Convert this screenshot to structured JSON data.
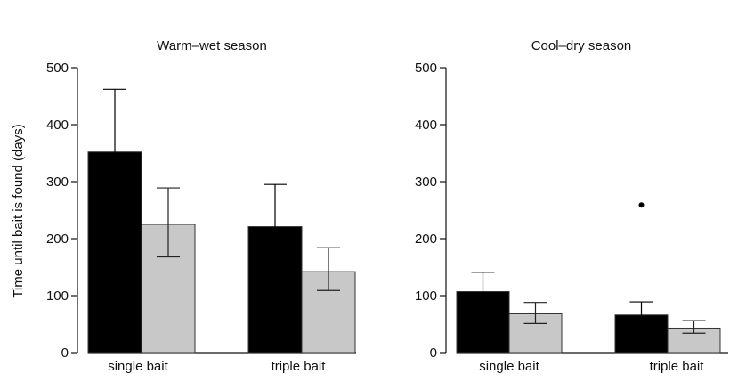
{
  "colors": {
    "series_a": "#000000",
    "series_b": "#c8c8c8",
    "axis": "#111111",
    "errorbar": "#222222"
  },
  "chart_data": [
    {
      "type": "bar",
      "title": "Warm–wet season",
      "ylabel": "Time until bait is found (days)",
      "xlabel": "",
      "ylim": [
        0,
        500
      ],
      "yticks": [
        0,
        100,
        200,
        300,
        400,
        500
      ],
      "categories": [
        "single bait",
        "triple bait"
      ],
      "grid": false,
      "legend": "none",
      "series": [
        {
          "color": "#000000",
          "values": [
            352,
            221
          ],
          "err_low": [
            268,
            172
          ],
          "err_high": [
            462,
            295
          ]
        },
        {
          "color": "#c8c8c8",
          "values": [
            225,
            142
          ],
          "err_low": [
            168,
            109
          ],
          "err_high": [
            289,
            184
          ]
        }
      ],
      "outliers": []
    },
    {
      "type": "bar",
      "title": "Cool–dry season",
      "ylabel": "",
      "xlabel": "",
      "ylim": [
        0,
        500
      ],
      "yticks": [
        0,
        100,
        200,
        300,
        400,
        500
      ],
      "categories": [
        "single bait",
        "triple bait"
      ],
      "grid": false,
      "legend": "none",
      "series": [
        {
          "color": "#000000",
          "values": [
            107,
            66
          ],
          "err_low": [
            82,
            52
          ],
          "err_high": [
            141,
            89
          ]
        },
        {
          "color": "#c8c8c8",
          "values": [
            68,
            43
          ],
          "err_low": [
            51,
            34
          ],
          "err_high": [
            88,
            56
          ]
        }
      ],
      "outliers": [
        {
          "category": "triple bait",
          "series": 0,
          "value": 259
        }
      ]
    }
  ]
}
